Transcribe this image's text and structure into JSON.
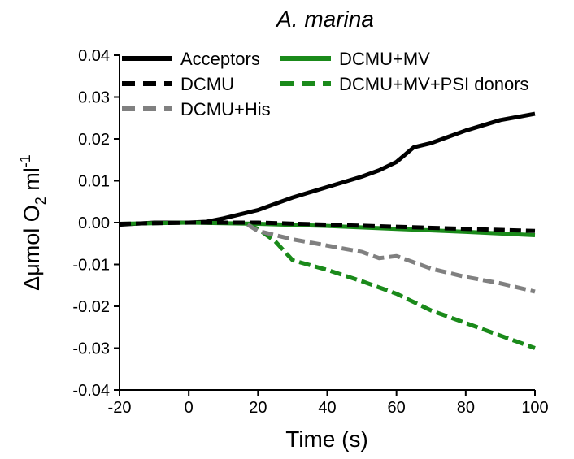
{
  "chart_data": {
    "type": "line",
    "title": "A. marina",
    "x_label": "Time (s)",
    "y_label": {
      "main": "Δμmol O",
      "subscript": "2",
      "unit": " ml",
      "superscript": "-1"
    },
    "xlim": [
      -20,
      100
    ],
    "ylim": [
      -0.04,
      0.04
    ],
    "xticks": [
      -20,
      0,
      20,
      40,
      60,
      80,
      100
    ],
    "yticks": [
      0.04,
      0.03,
      0.02,
      0.01,
      {
        "value": 0,
        "label": "0.00"
      },
      -0.01,
      -0.02,
      -0.03,
      -0.04
    ],
    "series": [
      {
        "name": "Acceptors",
        "color": "#000000",
        "dashed": false,
        "x": [
          -20,
          -10,
          0,
          5,
          10,
          20,
          30,
          40,
          50,
          55,
          60,
          65,
          70,
          80,
          90,
          100
        ],
        "values": [
          -0.0005,
          0.0,
          0.0,
          0.0002,
          0.001,
          0.003,
          0.006,
          0.0085,
          0.011,
          0.0125,
          0.0145,
          0.018,
          0.019,
          0.022,
          0.0245,
          0.026
        ]
      },
      {
        "name": "DCMU+MV",
        "color": "#1a8a1a",
        "dashed": false,
        "x": [
          -20,
          0,
          20,
          40,
          60,
          80,
          100
        ],
        "values": [
          -0.0003,
          0.0,
          -0.0003,
          -0.0008,
          -0.0015,
          -0.0022,
          -0.003
        ]
      },
      {
        "name": "DCMU",
        "color": "#000000",
        "dashed": true,
        "x": [
          -20,
          0,
          20,
          40,
          60,
          80,
          100
        ],
        "values": [
          -0.0003,
          0.0,
          0.0,
          -0.0005,
          -0.001,
          -0.0015,
          -0.002
        ]
      },
      {
        "name": "DCMU+MV+PSI donors",
        "color": "#1a8a1a",
        "dashed": true,
        "x": [
          17,
          20,
          25,
          30,
          40,
          50,
          60,
          70,
          80,
          90,
          100
        ],
        "values": [
          -0.0005,
          -0.0015,
          -0.0045,
          -0.009,
          -0.0113,
          -0.014,
          -0.017,
          -0.021,
          -0.024,
          -0.027,
          -0.03
        ]
      },
      {
        "name": "DCMU+His",
        "color": "#808080",
        "dashed": true,
        "x": [
          17,
          20,
          30,
          40,
          50,
          55,
          60,
          65,
          70,
          80,
          90,
          100
        ],
        "values": [
          -0.0005,
          -0.002,
          -0.004,
          -0.0055,
          -0.007,
          -0.0085,
          -0.008,
          -0.0095,
          -0.011,
          -0.013,
          -0.0145,
          -0.0165
        ]
      }
    ]
  }
}
